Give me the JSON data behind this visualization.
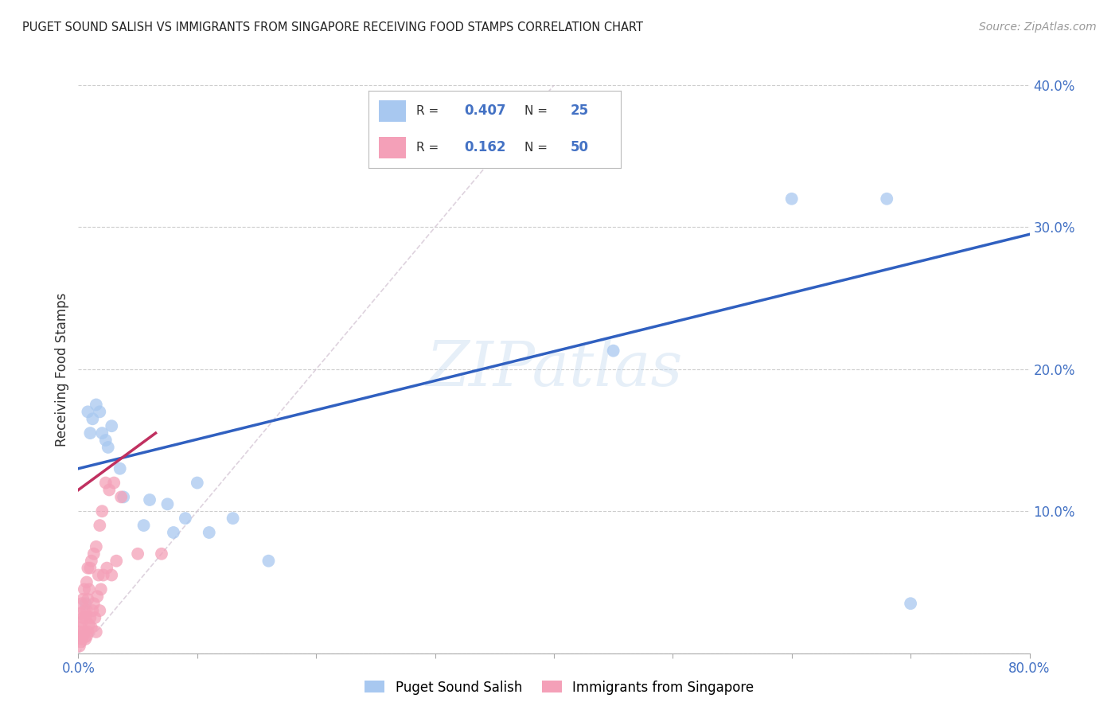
{
  "title": "PUGET SOUND SALISH VS IMMIGRANTS FROM SINGAPORE RECEIVING FOOD STAMPS CORRELATION CHART",
  "source": "Source: ZipAtlas.com",
  "ylabel": "Receiving Food Stamps",
  "xlabel_blue": "Puget Sound Salish",
  "xlabel_pink": "Immigrants from Singapore",
  "watermark": "ZIPatlas",
  "xlim": [
    0.0,
    0.8
  ],
  "ylim": [
    0.0,
    0.4
  ],
  "R_blue": "0.407",
  "N_blue": "25",
  "R_pink": "0.162",
  "N_pink": "50",
  "color_blue": "#A8C8F0",
  "color_pink": "#F4A0B8",
  "line_blue": "#3060C0",
  "line_pink": "#C03060",
  "line_diag_color": "#D0C0D0",
  "blue_scatter_x": [
    0.006,
    0.008,
    0.01,
    0.012,
    0.015,
    0.018,
    0.02,
    0.023,
    0.025,
    0.028,
    0.035,
    0.038,
    0.055,
    0.06,
    0.075,
    0.08,
    0.09,
    0.1,
    0.11,
    0.13,
    0.16,
    0.45,
    0.6,
    0.68,
    0.7
  ],
  "blue_scatter_y": [
    0.035,
    0.17,
    0.155,
    0.165,
    0.175,
    0.17,
    0.155,
    0.15,
    0.145,
    0.16,
    0.13,
    0.11,
    0.09,
    0.108,
    0.105,
    0.085,
    0.095,
    0.12,
    0.085,
    0.095,
    0.065,
    0.213,
    0.32,
    0.32,
    0.035
  ],
  "pink_scatter_x": [
    0.001,
    0.001,
    0.002,
    0.002,
    0.002,
    0.003,
    0.003,
    0.003,
    0.004,
    0.004,
    0.004,
    0.005,
    0.005,
    0.005,
    0.006,
    0.006,
    0.007,
    0.007,
    0.007,
    0.008,
    0.008,
    0.008,
    0.009,
    0.009,
    0.01,
    0.01,
    0.011,
    0.011,
    0.012,
    0.013,
    0.013,
    0.014,
    0.015,
    0.015,
    0.016,
    0.017,
    0.018,
    0.018,
    0.019,
    0.02,
    0.021,
    0.023,
    0.024,
    0.026,
    0.028,
    0.03,
    0.032,
    0.036,
    0.05,
    0.07
  ],
  "pink_scatter_y": [
    0.005,
    0.015,
    0.008,
    0.018,
    0.028,
    0.01,
    0.022,
    0.035,
    0.012,
    0.025,
    0.038,
    0.015,
    0.03,
    0.045,
    0.01,
    0.025,
    0.012,
    0.03,
    0.05,
    0.015,
    0.038,
    0.06,
    0.02,
    0.045,
    0.025,
    0.06,
    0.018,
    0.065,
    0.03,
    0.035,
    0.07,
    0.025,
    0.015,
    0.075,
    0.04,
    0.055,
    0.03,
    0.09,
    0.045,
    0.1,
    0.055,
    0.12,
    0.06,
    0.115,
    0.055,
    0.12,
    0.065,
    0.11,
    0.07,
    0.07
  ],
  "blue_line_x": [
    0.0,
    0.8
  ],
  "blue_line_y": [
    0.13,
    0.295
  ],
  "pink_line_x": [
    0.0,
    0.065
  ],
  "pink_line_y": [
    0.115,
    0.155
  ],
  "diag_line_x": [
    0.0,
    0.4
  ],
  "diag_line_y": [
    0.0,
    0.4
  ]
}
